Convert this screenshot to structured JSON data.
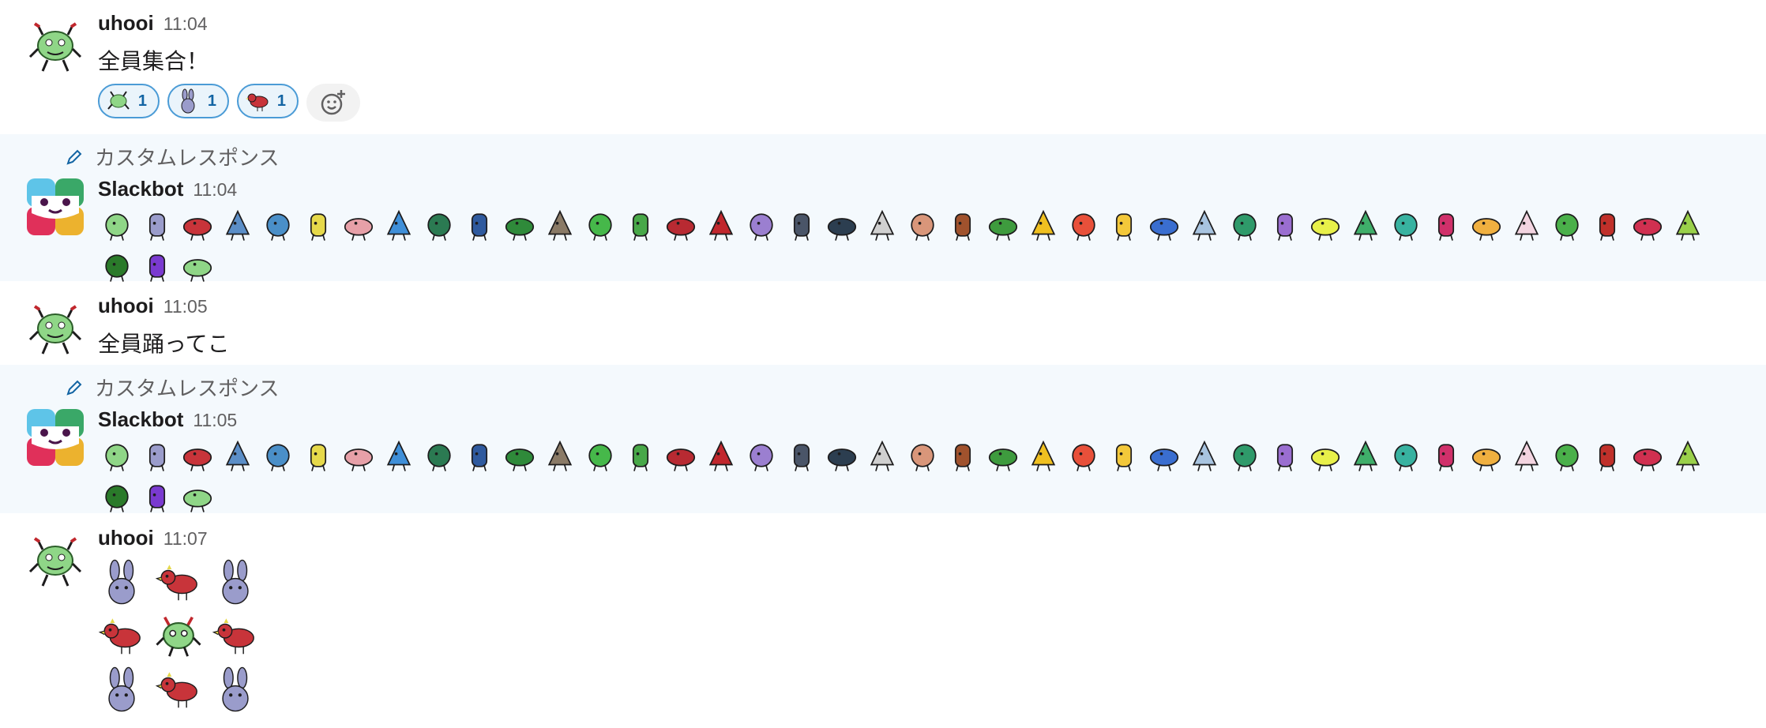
{
  "messages": [
    {
      "author": "uhooi",
      "time": "11:04",
      "text": "全員集合！",
      "avatar": "green-monster-icon",
      "reactions": [
        {
          "emoji": "green-monster-icon",
          "count": "1"
        },
        {
          "emoji": "rabbit-icon",
          "count": "1"
        },
        {
          "emoji": "red-bird-icon",
          "count": "1"
        }
      ]
    },
    {
      "label": "カスタムレスポンス",
      "author": "Slackbot",
      "time": "11:04",
      "avatar": "slackbot-icon"
    },
    {
      "author": "uhooi",
      "time": "11:05",
      "text": "全員踊ってこ",
      "avatar": "green-monster-icon"
    },
    {
      "label": "カスタムレスポンス",
      "author": "Slackbot",
      "time": "11:05",
      "avatar": "slackbot-icon"
    },
    {
      "author": "uhooi",
      "time": "11:07",
      "avatar": "green-monster-icon",
      "grid": [
        "rabbit-icon",
        "red-bird-icon",
        "rabbit-icon",
        "red-bird-icon",
        "green-monster-icon",
        "red-bird-icon",
        "rabbit-icon",
        "red-bird-icon",
        "rabbit-icon"
      ]
    }
  ],
  "emoji_palette": [
    "#8fd687",
    "#9a9ccb",
    "#c8343a",
    "#5b8ec7",
    "#4a8fc8",
    "#e6d94a",
    "#e7a0a8",
    "#3f8fd8",
    "#2b7a52",
    "#2f5a9e",
    "#2f8a3a",
    "#8a7a66",
    "#46b84a",
    "#48a848",
    "#b82a32",
    "#c1272d",
    "#9b7fd0",
    "#4a5568",
    "#2c3e50",
    "#d0d0d0",
    "#d9967a",
    "#a0522d",
    "#3e9b3e",
    "#f0c020",
    "#e8503a",
    "#f3c83a",
    "#3a6ed0",
    "#a8c4e0",
    "#2f9a6a",
    "#9a6ed0",
    "#e8f04a",
    "#3fae6a",
    "#38b2a0",
    "#d0306a",
    "#f0b040",
    "#f3d4e0",
    "#4ab04a",
    "#c0302a",
    "#d03050",
    "#9ad04a",
    "#2a7a2a",
    "#7a3ad0"
  ],
  "emoji_count": 43
}
